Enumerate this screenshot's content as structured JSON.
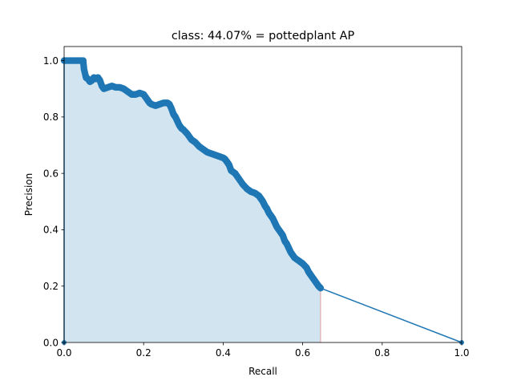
{
  "chart_data": {
    "type": "line",
    "title": "class: 44.07% = pottedplant AP",
    "xlabel": "Recall",
    "ylabel": "Precision",
    "xlim": [
      0.0,
      1.0
    ],
    "ylim": [
      0.0,
      1.05
    ],
    "xticks": [
      "0.0",
      "0.2",
      "0.4",
      "0.6",
      "0.8",
      "1.0"
    ],
    "yticks": [
      "0.0",
      "0.2",
      "0.4",
      "0.6",
      "0.8",
      "1.0"
    ],
    "grid": false,
    "line_color": "#1f77b4",
    "fill_color": "#1f77b4",
    "fill_edge_color": "#e6a0a0",
    "series": [
      {
        "values": [
          [
            0.0,
            0.0
          ],
          [
            0.0,
            1.0
          ],
          [
            0.01,
            1.0
          ],
          [
            0.02,
            1.0
          ],
          [
            0.03,
            1.0
          ],
          [
            0.04,
            1.0
          ],
          [
            0.048,
            1.0
          ],
          [
            0.05,
            0.97
          ],
          [
            0.055,
            0.94
          ],
          [
            0.06,
            0.935
          ],
          [
            0.065,
            0.925
          ],
          [
            0.07,
            0.93
          ],
          [
            0.075,
            0.94
          ],
          [
            0.08,
            0.935
          ],
          [
            0.085,
            0.94
          ],
          [
            0.09,
            0.93
          ],
          [
            0.095,
            0.91
          ],
          [
            0.1,
            0.9
          ],
          [
            0.11,
            0.905
          ],
          [
            0.12,
            0.91
          ],
          [
            0.13,
            0.905
          ],
          [
            0.14,
            0.905
          ],
          [
            0.15,
            0.9
          ],
          [
            0.16,
            0.89
          ],
          [
            0.17,
            0.88
          ],
          [
            0.18,
            0.88
          ],
          [
            0.19,
            0.885
          ],
          [
            0.2,
            0.88
          ],
          [
            0.205,
            0.87
          ],
          [
            0.21,
            0.86
          ],
          [
            0.215,
            0.85
          ],
          [
            0.22,
            0.845
          ],
          [
            0.23,
            0.84
          ],
          [
            0.24,
            0.845
          ],
          [
            0.25,
            0.85
          ],
          [
            0.26,
            0.85
          ],
          [
            0.265,
            0.845
          ],
          [
            0.27,
            0.83
          ],
          [
            0.275,
            0.81
          ],
          [
            0.28,
            0.8
          ],
          [
            0.285,
            0.785
          ],
          [
            0.29,
            0.77
          ],
          [
            0.295,
            0.76
          ],
          [
            0.3,
            0.755
          ],
          [
            0.31,
            0.74
          ],
          [
            0.32,
            0.72
          ],
          [
            0.33,
            0.71
          ],
          [
            0.34,
            0.695
          ],
          [
            0.35,
            0.685
          ],
          [
            0.36,
            0.675
          ],
          [
            0.37,
            0.67
          ],
          [
            0.38,
            0.665
          ],
          [
            0.39,
            0.66
          ],
          [
            0.4,
            0.655
          ],
          [
            0.405,
            0.65
          ],
          [
            0.41,
            0.64
          ],
          [
            0.415,
            0.63
          ],
          [
            0.42,
            0.61
          ],
          [
            0.43,
            0.6
          ],
          [
            0.44,
            0.58
          ],
          [
            0.45,
            0.56
          ],
          [
            0.46,
            0.545
          ],
          [
            0.47,
            0.535
          ],
          [
            0.48,
            0.53
          ],
          [
            0.49,
            0.52
          ],
          [
            0.495,
            0.51
          ],
          [
            0.5,
            0.5
          ],
          [
            0.505,
            0.485
          ],
          [
            0.51,
            0.475
          ],
          [
            0.515,
            0.46
          ],
          [
            0.52,
            0.45
          ],
          [
            0.525,
            0.44
          ],
          [
            0.53,
            0.425
          ],
          [
            0.535,
            0.41
          ],
          [
            0.54,
            0.4
          ],
          [
            0.545,
            0.39
          ],
          [
            0.55,
            0.38
          ],
          [
            0.555,
            0.36
          ],
          [
            0.56,
            0.35
          ],
          [
            0.565,
            0.335
          ],
          [
            0.57,
            0.32
          ],
          [
            0.575,
            0.31
          ],
          [
            0.58,
            0.3
          ],
          [
            0.59,
            0.29
          ],
          [
            0.6,
            0.28
          ],
          [
            0.61,
            0.265
          ],
          [
            0.615,
            0.25
          ],
          [
            0.62,
            0.24
          ],
          [
            0.625,
            0.23
          ],
          [
            0.63,
            0.22
          ],
          [
            0.635,
            0.21
          ],
          [
            0.64,
            0.2
          ],
          [
            0.645,
            0.193
          ],
          [
            1.0,
            0.0
          ]
        ]
      }
    ]
  }
}
